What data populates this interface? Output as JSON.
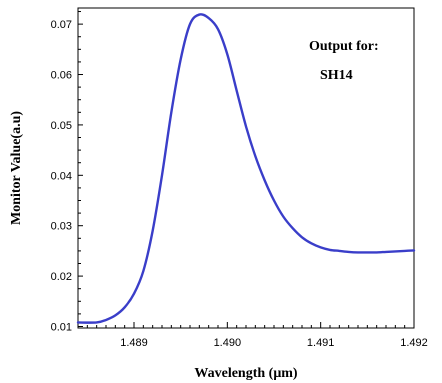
{
  "chart_data": {
    "type": "line",
    "title": "",
    "xlabel": "Wavelength (μm)",
    "ylabel": "Monitor Value(a.u)",
    "xlim": [
      1.4884,
      1.492
    ],
    "ylim": [
      0.0097,
      0.0732
    ],
    "x_ticks": [
      "1.489",
      "1.490",
      "1.491",
      "1.492"
    ],
    "x_tick_values": [
      1.489,
      1.49,
      1.491,
      1.492
    ],
    "y_ticks": [
      "0.01",
      "0.02",
      "0.03",
      "0.04",
      "0.05",
      "0.06",
      "0.07"
    ],
    "y_tick_values": [
      0.01,
      0.02,
      0.03,
      0.04,
      0.05,
      0.06,
      0.07
    ],
    "grid": false,
    "annotations": [
      "Output for:",
      "SH14"
    ],
    "series_color": "#3a3ec9",
    "series": [
      {
        "x": [
          1.4884,
          1.4886,
          1.4887,
          1.4888,
          1.4889,
          1.489,
          1.4891,
          1.4892,
          1.4893,
          1.4894,
          1.4895,
          1.4896,
          1.4897,
          1.4898,
          1.4899,
          1.49,
          1.4901,
          1.4902,
          1.4903,
          1.4904,
          1.4905,
          1.4906,
          1.4907,
          1.4908,
          1.4909,
          1.491,
          1.4911,
          1.4912,
          1.4913,
          1.4914,
          1.4915,
          1.4916,
          1.4917,
          1.4918,
          1.4919,
          1.492
        ],
        "y": [
          0.0108,
          0.0108,
          0.0113,
          0.0122,
          0.0138,
          0.0165,
          0.021,
          0.029,
          0.04,
          0.0525,
          0.063,
          0.07,
          0.0719,
          0.0712,
          0.069,
          0.064,
          0.0568,
          0.0497,
          0.0438,
          0.039,
          0.035,
          0.0318,
          0.0295,
          0.0277,
          0.0265,
          0.0257,
          0.0252,
          0.025,
          0.0248,
          0.0247,
          0.0247,
          0.0247,
          0.0248,
          0.0249,
          0.025,
          0.0251
        ]
      }
    ]
  }
}
